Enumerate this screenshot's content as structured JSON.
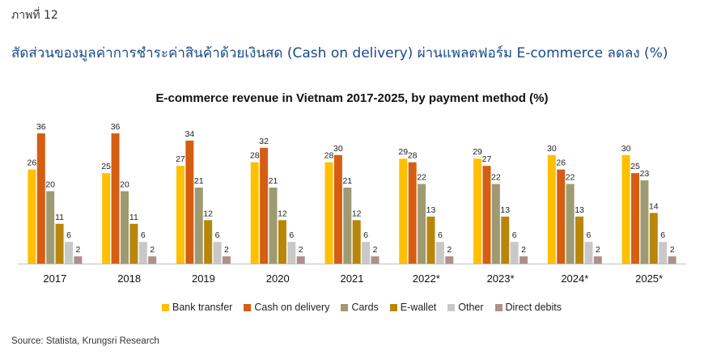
{
  "figure_label": "ภาพที่ 12",
  "header_title": "สัดส่วนของมูลค่าการชำระค่าสินค้าด้วยเงินสด (Cash on delivery) ผ่านแพลตฟอร์ม E-commerce ลดลง (%)",
  "source": "Source: Statista, Krungsri Research",
  "chart_data": {
    "type": "bar",
    "title": "E-commerce revenue in Vietnam 2017-2025, by payment method (%)",
    "xlabel": "",
    "ylabel": "",
    "ylim": [
      0,
      40
    ],
    "grid": false,
    "legend_position": "bottom",
    "categories": [
      "2017",
      "2018",
      "2019",
      "2020",
      "2021",
      "2022*",
      "2023*",
      "2024*",
      "2025*"
    ],
    "series": [
      {
        "name": "Bank transfer",
        "color": "#FFC000",
        "values": [
          26,
          25,
          27,
          28,
          28,
          29,
          29,
          30,
          30
        ]
      },
      {
        "name": "Cash on delivery",
        "color": "#D55E12",
        "values": [
          36,
          36,
          34,
          32,
          30,
          28,
          27,
          26,
          25
        ]
      },
      {
        "name": "Cards",
        "color": "#9E9A72",
        "values": [
          20,
          20,
          21,
          21,
          21,
          22,
          22,
          22,
          23
        ]
      },
      {
        "name": "E-wallet",
        "color": "#B8860B",
        "values": [
          11,
          11,
          12,
          12,
          12,
          13,
          13,
          13,
          14
        ]
      },
      {
        "name": "Other",
        "color": "#C8C8C8",
        "values": [
          6,
          6,
          6,
          6,
          6,
          6,
          6,
          6,
          6
        ]
      },
      {
        "name": "Direct debits",
        "color": "#B08E8E",
        "values": [
          2,
          2,
          2,
          2,
          2,
          2,
          2,
          2,
          2
        ]
      }
    ]
  }
}
